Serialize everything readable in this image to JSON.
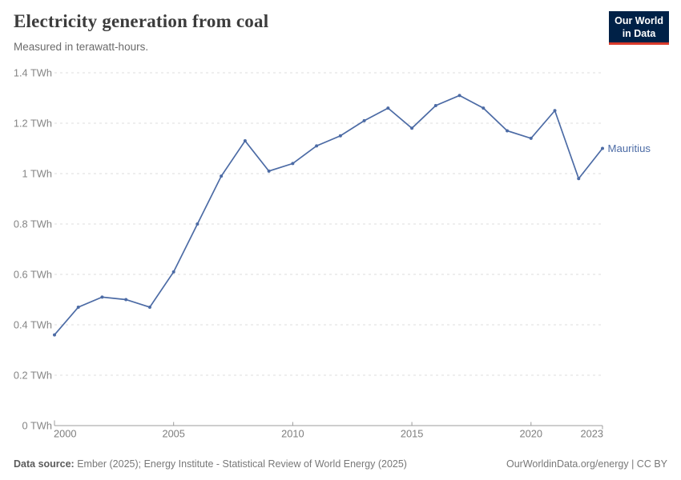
{
  "header": {
    "title": "Electricity generation from coal",
    "subtitle": "Measured in terawatt-hours."
  },
  "logo": {
    "line1": "Our World",
    "line2": "in Data",
    "bg_color": "#002147",
    "accent_color": "#d93a2b"
  },
  "chart_data": {
    "type": "line",
    "title": "Electricity generation from coal",
    "subtitle": "Measured in terawatt-hours.",
    "x": [
      2000,
      2001,
      2002,
      2003,
      2004,
      2005,
      2006,
      2007,
      2008,
      2009,
      2010,
      2011,
      2012,
      2013,
      2014,
      2015,
      2016,
      2017,
      2018,
      2019,
      2020,
      2021,
      2022,
      2023
    ],
    "series": [
      {
        "name": "Mauritius",
        "color": "#4c6ba5",
        "values": [
          0.36,
          0.47,
          0.51,
          0.5,
          0.47,
          0.61,
          0.8,
          0.99,
          1.13,
          1.01,
          1.04,
          1.11,
          1.15,
          1.21,
          1.26,
          1.18,
          1.27,
          1.31,
          1.26,
          1.17,
          1.14,
          1.25,
          0.98,
          1.1
        ]
      }
    ],
    "unit": "TWh",
    "xlabel": "",
    "ylabel": "",
    "xlim": [
      2000,
      2023
    ],
    "ylim": [
      0,
      1.4
    ],
    "x_ticks": [
      2000,
      2005,
      2010,
      2015,
      2020,
      2023
    ],
    "y_ticks": [
      0,
      0.2,
      0.4,
      0.6,
      0.8,
      1,
      1.2,
      1.4
    ],
    "y_tick_labels": [
      "0 TWh",
      "0.2 TWh",
      "0.4 TWh",
      "0.6 TWh",
      "0.8 TWh",
      "1 TWh",
      "1.2 TWh",
      "1.4 TWh"
    ],
    "grid": "horizontal dashed",
    "legend_position": "end-of-line label"
  },
  "footer": {
    "source_label": "Data source:",
    "source_text": " Ember (2025); Energy Institute - Statistical Review of World Energy (2025)",
    "attribution": "OurWorldinData.org/energy | CC BY"
  }
}
